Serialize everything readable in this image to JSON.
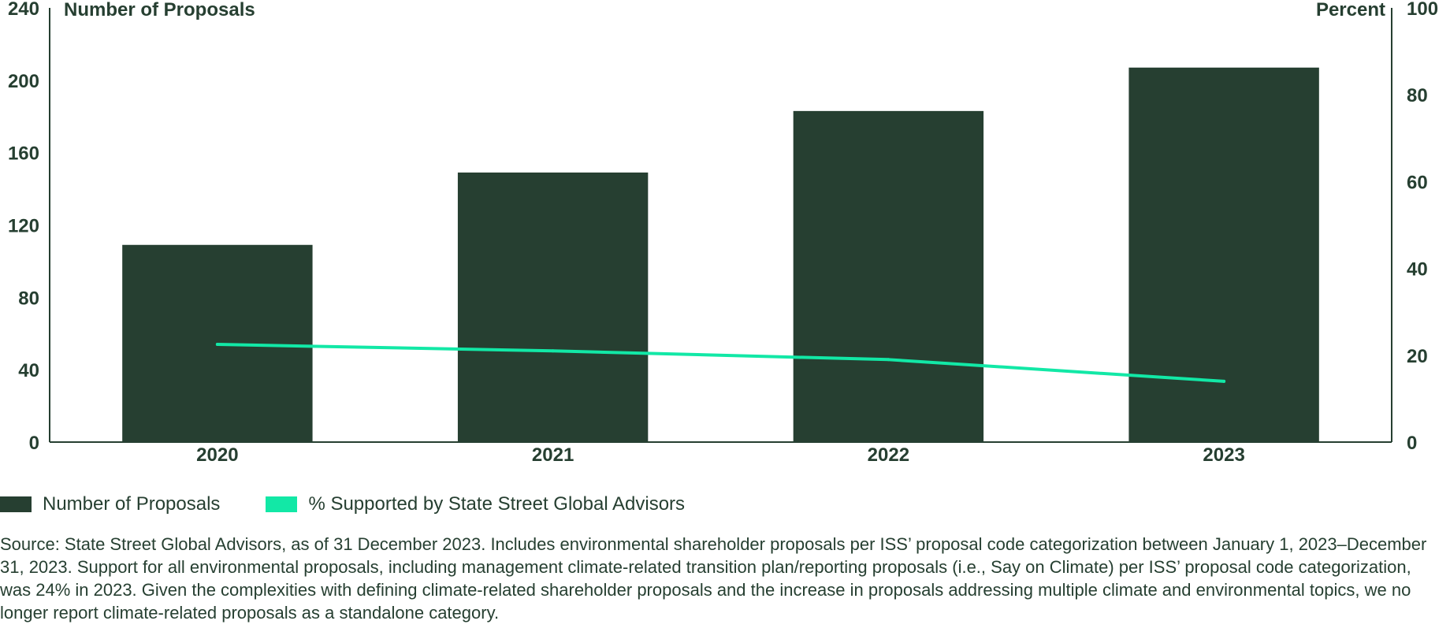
{
  "chart_data": {
    "type": "bar",
    "categories": [
      "2020",
      "2021",
      "2022",
      "2023"
    ],
    "series": [
      {
        "name": "Number of Proposals",
        "kind": "bar",
        "axis": "left",
        "values": [
          109,
          149,
          183,
          207
        ],
        "color": "#263f31"
      },
      {
        "name": "% Supported by State Street Global Advisors",
        "kind": "line",
        "axis": "right",
        "values": [
          22.5,
          21,
          19,
          14
        ],
        "color": "#12e8a6"
      }
    ],
    "y_left": {
      "label": "Number of Proposals",
      "range": [
        0,
        240
      ],
      "ticks": [
        "0",
        "40",
        "80",
        "120",
        "160",
        "200",
        "240"
      ]
    },
    "y_right": {
      "label": "Percent",
      "range": [
        0,
        100
      ],
      "ticks": [
        "0",
        "20",
        "40",
        "60",
        "80",
        "100"
      ]
    },
    "grid": false,
    "legend_position": "bottom-left"
  },
  "legend": {
    "items": [
      {
        "label": "Number of Proposals",
        "color": "#263f31"
      },
      {
        "label": "% Supported by State Street Global Advisors",
        "color": "#12e8a6"
      }
    ]
  },
  "source_note": "Source: State Street Global Advisors, as of 31 December 2023. Includes environmental shareholder proposals per ISS’ proposal code categorization between January 1, 2023–December 31, 2023. Support for all environmental proposals, including management climate-related transition plan/reporting proposals (i.e., Say on Climate) per ISS’ proposal code categorization, was 24% in 2023. Given the complexities with defining climate-related shareholder proposals and the increase in proposals addressing multiple climate and environmental topics, we no longer report climate-related proposals as a standalone category."
}
